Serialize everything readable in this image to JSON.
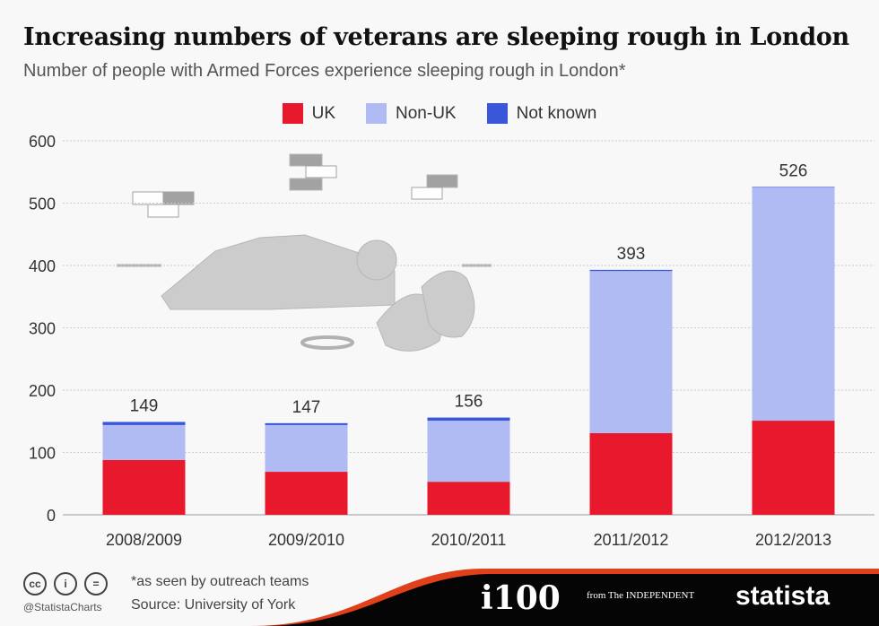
{
  "title": "Increasing numbers of veterans are sleeping rough in London",
  "subtitle": "Number of people with Armed Forces experience sleeping rough in London*",
  "footer": {
    "note": "*as seen by outreach teams",
    "source": "Source: University of York",
    "handle": "@StatistaCharts",
    "logos": [
      "i100",
      "from The INDEPENDENT",
      "statista"
    ]
  },
  "colors": {
    "UK": "#e8192c",
    "Non-UK": "#b1bbf3",
    "Not known": "#3b57d9"
  },
  "chart_data": {
    "type": "bar",
    "stacked": true,
    "title": "Increasing numbers of veterans are sleeping rough in London",
    "categories": [
      "2008/2009",
      "2009/2010",
      "2010/2011",
      "2011/2012",
      "2012/2013"
    ],
    "series": [
      {
        "name": "UK",
        "values": [
          88,
          69,
          53,
          131,
          151
        ]
      },
      {
        "name": "Non-UK",
        "values": [
          56,
          75,
          98,
          260,
          374
        ]
      },
      {
        "name": "Not known",
        "values": [
          5,
          3,
          5,
          2,
          1
        ]
      }
    ],
    "totals": [
      "149",
      "147",
      "156",
      "393",
      "526"
    ],
    "yticks": [
      "0",
      "100",
      "200",
      "300",
      "400",
      "500",
      "600"
    ],
    "ylim": [
      0,
      600
    ],
    "grid": true,
    "legend": "top-center",
    "xlabel": "",
    "ylabel": ""
  }
}
